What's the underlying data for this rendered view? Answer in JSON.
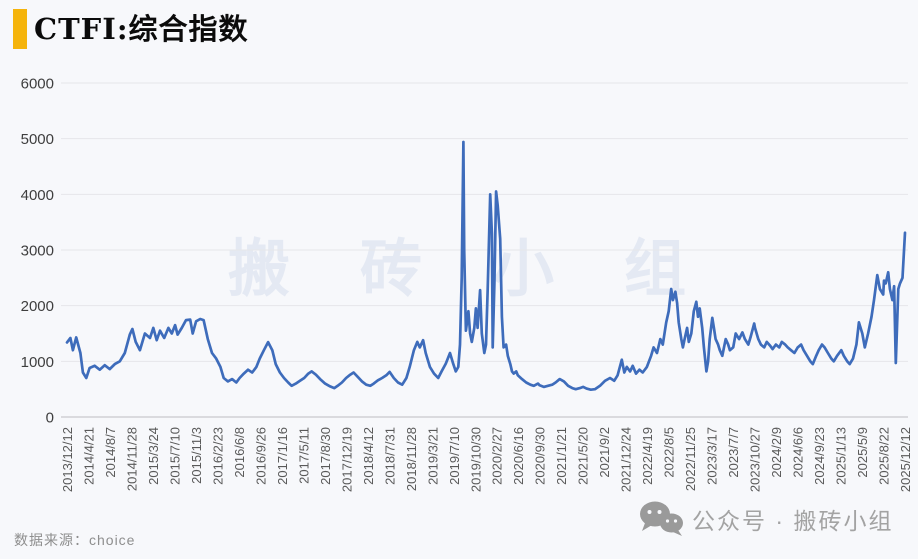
{
  "header": {
    "title": "CTFI:综合指数",
    "accent_color": "#F5B40B"
  },
  "watermark": {
    "text": "搬砖小组"
  },
  "footer": {
    "source_label": "数据来源：choice",
    "wechat_label": "公众号 · 搬砖小组"
  },
  "chart_data": {
    "type": "line",
    "title": "CTFI:综合指数",
    "grid": "horizontal",
    "legend": "none",
    "line_color": "#3E6CBB",
    "grid_color": "#e6e6ea",
    "axis_color": "#bdbdc2",
    "y_label_color": "#3e3e3e",
    "x_label_color": "#595959",
    "ylim": [
      0,
      6000
    ],
    "y_ticks": [
      0,
      1000,
      2000,
      3000,
      4000,
      5000,
      6000
    ],
    "x_tick_labels": [
      "2013/12/12",
      "2014/4/21",
      "2014/8/7",
      "2014/11/28",
      "2015/3/24",
      "2015/7/10",
      "2015/11/3",
      "2016/2/23",
      "2016/6/8",
      "2016/9/26",
      "2017/1/16",
      "2017/5/11",
      "2017/8/30",
      "2017/12/19",
      "2018/4/12",
      "2018/7/31",
      "2018/11/28",
      "2019/3/21",
      "2019/7/10",
      "2019/10/30",
      "2020/2/27",
      "2020/6/16",
      "2020/9/30",
      "2021/1/21",
      "2021/5/20",
      "2021/9/2",
      "2021/12/24",
      "2022/4/19",
      "2022/8/5",
      "2022/11/25",
      "2023/3/17",
      "2023/7/7",
      "2023/10/27",
      "2024/2/9",
      "2024/6/6",
      "2024/9/23",
      "2025/1/13",
      "2025/5/9",
      "2025/8/22",
      "2025/12/12"
    ],
    "points": [
      [
        0.0,
        1340
      ],
      [
        0.004,
        1420
      ],
      [
        0.007,
        1200
      ],
      [
        0.011,
        1430
      ],
      [
        0.016,
        1150
      ],
      [
        0.019,
        800
      ],
      [
        0.023,
        700
      ],
      [
        0.027,
        880
      ],
      [
        0.033,
        920
      ],
      [
        0.039,
        850
      ],
      [
        0.045,
        930
      ],
      [
        0.051,
        860
      ],
      [
        0.057,
        950
      ],
      [
        0.063,
        1000
      ],
      [
        0.069,
        1150
      ],
      [
        0.075,
        1480
      ],
      [
        0.078,
        1580
      ],
      [
        0.082,
        1350
      ],
      [
        0.087,
        1200
      ],
      [
        0.093,
        1500
      ],
      [
        0.099,
        1420
      ],
      [
        0.103,
        1600
      ],
      [
        0.107,
        1380
      ],
      [
        0.111,
        1550
      ],
      [
        0.116,
        1420
      ],
      [
        0.121,
        1600
      ],
      [
        0.125,
        1500
      ],
      [
        0.129,
        1650
      ],
      [
        0.132,
        1480
      ],
      [
        0.137,
        1600
      ],
      [
        0.142,
        1740
      ],
      [
        0.147,
        1750
      ],
      [
        0.15,
        1500
      ],
      [
        0.154,
        1720
      ],
      [
        0.159,
        1760
      ],
      [
        0.163,
        1740
      ],
      [
        0.168,
        1400
      ],
      [
        0.173,
        1150
      ],
      [
        0.178,
        1050
      ],
      [
        0.183,
        900
      ],
      [
        0.187,
        700
      ],
      [
        0.192,
        640
      ],
      [
        0.197,
        680
      ],
      [
        0.202,
        620
      ],
      [
        0.206,
        700
      ],
      [
        0.211,
        780
      ],
      [
        0.216,
        850
      ],
      [
        0.221,
        800
      ],
      [
        0.226,
        900
      ],
      [
        0.23,
        1050
      ],
      [
        0.235,
        1200
      ],
      [
        0.24,
        1345
      ],
      [
        0.245,
        1200
      ],
      [
        0.249,
        950
      ],
      [
        0.254,
        800
      ],
      [
        0.259,
        700
      ],
      [
        0.264,
        620
      ],
      [
        0.268,
        560
      ],
      [
        0.273,
        600
      ],
      [
        0.278,
        650
      ],
      [
        0.283,
        700
      ],
      [
        0.288,
        780
      ],
      [
        0.292,
        820
      ],
      [
        0.297,
        760
      ],
      [
        0.302,
        680
      ],
      [
        0.308,
        600
      ],
      [
        0.314,
        550
      ],
      [
        0.319,
        520
      ],
      [
        0.323,
        560
      ],
      [
        0.328,
        620
      ],
      [
        0.333,
        700
      ],
      [
        0.338,
        760
      ],
      [
        0.342,
        800
      ],
      [
        0.347,
        720
      ],
      [
        0.352,
        640
      ],
      [
        0.357,
        580
      ],
      [
        0.362,
        560
      ],
      [
        0.366,
        600
      ],
      [
        0.371,
        660
      ],
      [
        0.376,
        700
      ],
      [
        0.381,
        750
      ],
      [
        0.385,
        810
      ],
      [
        0.39,
        700
      ],
      [
        0.395,
        620
      ],
      [
        0.4,
        580
      ],
      [
        0.405,
        700
      ],
      [
        0.409,
        900
      ],
      [
        0.414,
        1200
      ],
      [
        0.418,
        1350
      ],
      [
        0.421,
        1250
      ],
      [
        0.425,
        1380
      ],
      [
        0.428,
        1150
      ],
      [
        0.433,
        900
      ],
      [
        0.438,
        780
      ],
      [
        0.443,
        700
      ],
      [
        0.447,
        820
      ],
      [
        0.452,
        960
      ],
      [
        0.457,
        1150
      ],
      [
        0.461,
        950
      ],
      [
        0.464,
        820
      ],
      [
        0.467,
        900
      ],
      [
        0.469,
        1300
      ],
      [
        0.471,
        2500
      ],
      [
        0.473,
        4940
      ],
      [
        0.474,
        3000
      ],
      [
        0.476,
        1550
      ],
      [
        0.479,
        1900
      ],
      [
        0.481,
        1500
      ],
      [
        0.483,
        1350
      ],
      [
        0.486,
        1600
      ],
      [
        0.488,
        1950
      ],
      [
        0.49,
        1600
      ],
      [
        0.493,
        2280
      ],
      [
        0.495,
        1500
      ],
      [
        0.498,
        1150
      ],
      [
        0.5,
        1300
      ],
      [
        0.502,
        2300
      ],
      [
        0.505,
        4000
      ],
      [
        0.507,
        3300
      ],
      [
        0.508,
        1250
      ],
      [
        0.51,
        2400
      ],
      [
        0.512,
        4050
      ],
      [
        0.514,
        3800
      ],
      [
        0.517,
        3200
      ],
      [
        0.519,
        1800
      ],
      [
        0.521,
        1250
      ],
      [
        0.524,
        1300
      ],
      [
        0.526,
        1100
      ],
      [
        0.529,
        950
      ],
      [
        0.531,
        820
      ],
      [
        0.533,
        780
      ],
      [
        0.536,
        820
      ],
      [
        0.538,
        750
      ],
      [
        0.543,
        680
      ],
      [
        0.548,
        620
      ],
      [
        0.553,
        580
      ],
      [
        0.557,
        560
      ],
      [
        0.562,
        600
      ],
      [
        0.564,
        570
      ],
      [
        0.569,
        540
      ],
      [
        0.574,
        560
      ],
      [
        0.579,
        580
      ],
      [
        0.583,
        620
      ],
      [
        0.588,
        680
      ],
      [
        0.593,
        640
      ],
      [
        0.598,
        560
      ],
      [
        0.603,
        520
      ],
      [
        0.607,
        500
      ],
      [
        0.612,
        520
      ],
      [
        0.616,
        540
      ],
      [
        0.62,
        510
      ],
      [
        0.625,
        490
      ],
      [
        0.63,
        500
      ],
      [
        0.636,
        560
      ],
      [
        0.642,
        650
      ],
      [
        0.648,
        700
      ],
      [
        0.653,
        650
      ],
      [
        0.657,
        750
      ],
      [
        0.662,
        1030
      ],
      [
        0.665,
        800
      ],
      [
        0.668,
        900
      ],
      [
        0.672,
        820
      ],
      [
        0.675,
        920
      ],
      [
        0.679,
        780
      ],
      [
        0.683,
        850
      ],
      [
        0.687,
        800
      ],
      [
        0.692,
        900
      ],
      [
        0.697,
        1100
      ],
      [
        0.7,
        1250
      ],
      [
        0.704,
        1150
      ],
      [
        0.708,
        1400
      ],
      [
        0.711,
        1300
      ],
      [
        0.715,
        1700
      ],
      [
        0.718,
        1900
      ],
      [
        0.721,
        2300
      ],
      [
        0.723,
        2100
      ],
      [
        0.726,
        2250
      ],
      [
        0.728,
        2050
      ],
      [
        0.73,
        1700
      ],
      [
        0.733,
        1400
      ],
      [
        0.735,
        1250
      ],
      [
        0.737,
        1400
      ],
      [
        0.74,
        1600
      ],
      [
        0.742,
        1350
      ],
      [
        0.745,
        1500
      ],
      [
        0.748,
        1900
      ],
      [
        0.751,
        2070
      ],
      [
        0.753,
        1800
      ],
      [
        0.755,
        1950
      ],
      [
        0.758,
        1600
      ],
      [
        0.76,
        1250
      ],
      [
        0.763,
        820
      ],
      [
        0.765,
        1000
      ],
      [
        0.767,
        1400
      ],
      [
        0.77,
        1780
      ],
      [
        0.772,
        1600
      ],
      [
        0.774,
        1400
      ],
      [
        0.777,
        1300
      ],
      [
        0.779,
        1200
      ],
      [
        0.782,
        1100
      ],
      [
        0.784,
        1250
      ],
      [
        0.786,
        1400
      ],
      [
        0.789,
        1300
      ],
      [
        0.791,
        1200
      ],
      [
        0.795,
        1250
      ],
      [
        0.798,
        1500
      ],
      [
        0.802,
        1400
      ],
      [
        0.806,
        1520
      ],
      [
        0.809,
        1400
      ],
      [
        0.813,
        1300
      ],
      [
        0.816,
        1450
      ],
      [
        0.82,
        1680
      ],
      [
        0.821,
        1600
      ],
      [
        0.825,
        1400
      ],
      [
        0.828,
        1300
      ],
      [
        0.832,
        1250
      ],
      [
        0.835,
        1350
      ],
      [
        0.839,
        1280
      ],
      [
        0.842,
        1220
      ],
      [
        0.846,
        1300
      ],
      [
        0.85,
        1250
      ],
      [
        0.853,
        1350
      ],
      [
        0.857,
        1300
      ],
      [
        0.86,
        1250
      ],
      [
        0.864,
        1200
      ],
      [
        0.868,
        1150
      ],
      [
        0.872,
        1250
      ],
      [
        0.876,
        1300
      ],
      [
        0.879,
        1200
      ],
      [
        0.883,
        1100
      ],
      [
        0.887,
        1000
      ],
      [
        0.89,
        950
      ],
      [
        0.894,
        1100
      ],
      [
        0.897,
        1200
      ],
      [
        0.901,
        1300
      ],
      [
        0.904,
        1250
      ],
      [
        0.908,
        1150
      ],
      [
        0.912,
        1050
      ],
      [
        0.915,
        1000
      ],
      [
        0.919,
        1100
      ],
      [
        0.924,
        1200
      ],
      [
        0.927,
        1100
      ],
      [
        0.931,
        1000
      ],
      [
        0.934,
        950
      ],
      [
        0.938,
        1050
      ],
      [
        0.942,
        1300
      ],
      [
        0.945,
        1700
      ],
      [
        0.949,
        1500
      ],
      [
        0.952,
        1250
      ],
      [
        0.956,
        1500
      ],
      [
        0.96,
        1800
      ],
      [
        0.963,
        2100
      ],
      [
        0.967,
        2550
      ],
      [
        0.97,
        2300
      ],
      [
        0.974,
        2200
      ],
      [
        0.975,
        2450
      ],
      [
        0.977,
        2400
      ],
      [
        0.98,
        2600
      ],
      [
        0.982,
        2300
      ],
      [
        0.985,
        2100
      ],
      [
        0.987,
        2350
      ],
      [
        0.989,
        970
      ],
      [
        0.992,
        2300
      ],
      [
        0.994,
        2400
      ],
      [
        0.997,
        2500
      ],
      [
        1.0,
        3310
      ]
    ]
  }
}
